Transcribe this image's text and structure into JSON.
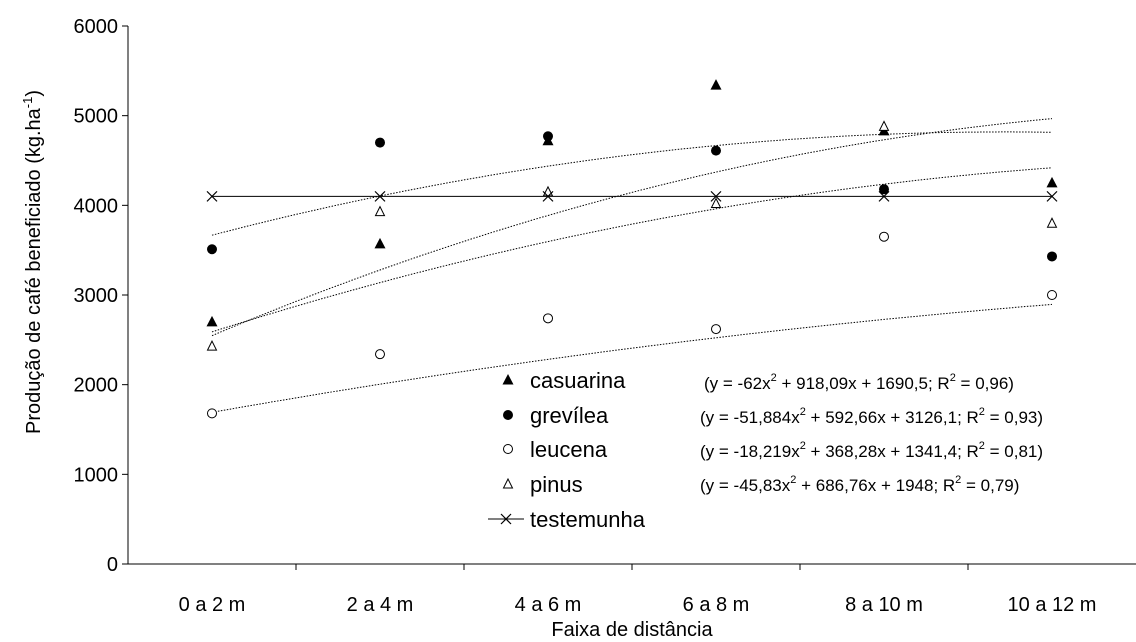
{
  "chart_data": {
    "type": "scatter",
    "xlabel": "Faixa de distância",
    "ylabel": "Produção de café beneficiado (kg.ha",
    "ylabel_sup": "-1",
    "ylabel_close": ")",
    "ylim": [
      0,
      6000
    ],
    "yticks": [
      0,
      1000,
      2000,
      3000,
      4000,
      5000,
      6000
    ],
    "categories": [
      "0 a 2 m",
      "2 a 4 m",
      "4 a 6 m",
      "6 a 8 m",
      "8 a 10 m",
      "10 a 12 m"
    ],
    "grid": false,
    "legend_position": "bottom-center",
    "series": [
      {
        "name": "casuarina",
        "marker": "filled-triangle",
        "values": [
          2700,
          3570,
          4720,
          5340,
          4830,
          4250
        ],
        "trend": {
          "a": -62,
          "b": 918.09,
          "c": 1690.5,
          "type": "quadratic"
        }
      },
      {
        "name": "grevílea",
        "marker": "filled-circle",
        "values": [
          3510,
          4700,
          4770,
          4610,
          4180,
          3430
        ],
        "trend": {
          "a": -51.884,
          "b": 592.66,
          "c": 3126.1,
          "type": "quadratic"
        }
      },
      {
        "name": "leucena",
        "marker": "open-circle",
        "values": [
          1680,
          2340,
          2740,
          2620,
          3650,
          3000
        ],
        "trend": {
          "a": -18.219,
          "b": 368.28,
          "c": 1341.4,
          "type": "quadratic"
        }
      },
      {
        "name": "pinus",
        "marker": "open-triangle",
        "values": [
          2430,
          3930,
          4150,
          4020,
          4880,
          3800
        ],
        "trend": {
          "a": -45.83,
          "b": 686.76,
          "c": 1948,
          "type": "quadratic"
        }
      },
      {
        "name": "testemunha",
        "marker": "cross-line",
        "values": [
          4100,
          4100,
          4100,
          4100,
          4100,
          4100
        ],
        "trend": null
      }
    ],
    "equations": [
      {
        "prefix": "(y = -62x",
        "sup": "2",
        "suffix": " + 918,09x + 1690,5; R",
        "sup2": "2",
        "end": " = 0,96)"
      },
      {
        "prefix": "(y = -51,884x",
        "sup": "2",
        "suffix": " + 592,66x + 3126,1; R",
        "sup2": "2",
        "end": " = 0,93)"
      },
      {
        "prefix": "(y = -18,219x",
        "sup": "2",
        "suffix": " + 368,28x + 1341,4; R",
        "sup2": "2",
        "end": " = 0,81)"
      },
      {
        "prefix": "(y = -45,83x",
        "sup": "2",
        "suffix": " + 686,76x + 1948; R",
        "sup2": "2",
        "end": " = 0,79)"
      }
    ]
  }
}
